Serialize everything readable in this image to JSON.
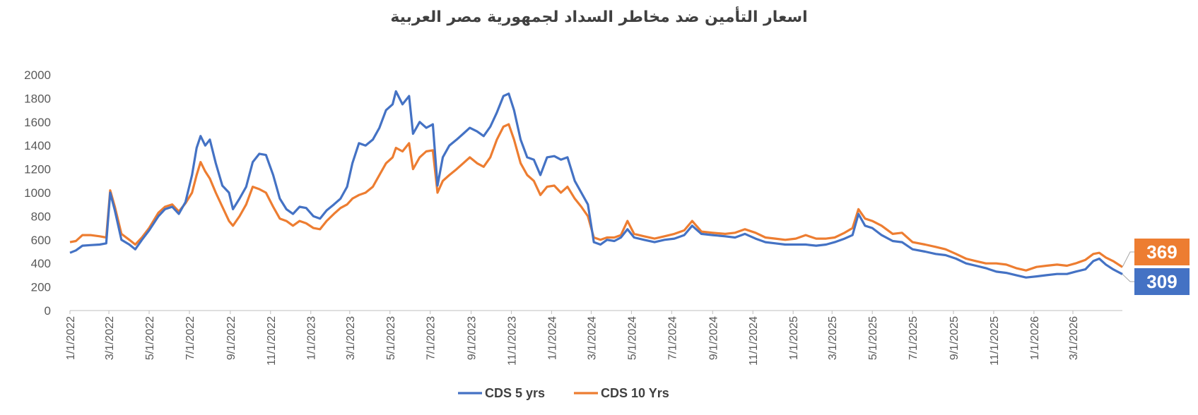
{
  "chart_data": {
    "type": "line",
    "title": "اسعار التأمين ضد مخاطر السداد لجمهورية مصر العربية",
    "xlabel": "",
    "ylabel": "",
    "ylim": [
      0,
      2000
    ],
    "yticks": [
      0,
      200,
      400,
      600,
      800,
      1000,
      1200,
      1400,
      1600,
      1800,
      2000
    ],
    "xrange": [
      "1/1/2022",
      "5/15/2026"
    ],
    "xticks": [
      "1/1/2022",
      "3/1/2022",
      "5/1/2022",
      "7/1/2022",
      "9/1/2022",
      "11/1/2022",
      "1/1/2023",
      "3/1/2023",
      "5/1/2023",
      "7/1/2023",
      "9/1/2023",
      "11/1/2023",
      "1/1/2024",
      "3/1/2024",
      "5/1/2024",
      "7/1/2024",
      "9/1/2024",
      "11/1/2024",
      "1/1/2025",
      "3/1/2025",
      "5/1/2025",
      "7/1/2025",
      "9/1/2025",
      "11/1/2025",
      "1/1/2026",
      "3/1/2026"
    ],
    "grid": false,
    "legend_position": "bottom",
    "series": [
      {
        "name": "CDS 5 yrs",
        "color": "#4472C4",
        "end_label": "309",
        "points": [
          [
            "1/1/2022",
            490
          ],
          [
            "1/10/2022",
            510
          ],
          [
            "1/20/2022",
            550
          ],
          [
            "2/1/2022",
            555
          ],
          [
            "2/15/2022",
            560
          ],
          [
            "2/25/2022",
            570
          ],
          [
            "3/3/2022",
            1000
          ],
          [
            "3/10/2022",
            850
          ],
          [
            "3/20/2022",
            600
          ],
          [
            "4/1/2022",
            560
          ],
          [
            "4/10/2022",
            520
          ],
          [
            "4/20/2022",
            600
          ],
          [
            "5/1/2022",
            680
          ],
          [
            "5/15/2022",
            800
          ],
          [
            "5/25/2022",
            860
          ],
          [
            "6/5/2022",
            880
          ],
          [
            "6/15/2022",
            820
          ],
          [
            "6/25/2022",
            920
          ],
          [
            "7/5/2022",
            1150
          ],
          [
            "7/12/2022",
            1380
          ],
          [
            "7/18/2022",
            1480
          ],
          [
            "7/25/2022",
            1400
          ],
          [
            "8/1/2022",
            1450
          ],
          [
            "8/10/2022",
            1250
          ],
          [
            "8/20/2022",
            1060
          ],
          [
            "8/30/2022",
            1000
          ],
          [
            "9/5/2022",
            860
          ],
          [
            "9/15/2022",
            950
          ],
          [
            "9/25/2022",
            1050
          ],
          [
            "10/5/2022",
            1260
          ],
          [
            "10/15/2022",
            1330
          ],
          [
            "10/25/2022",
            1320
          ],
          [
            "11/5/2022",
            1150
          ],
          [
            "11/15/2022",
            950
          ],
          [
            "11/25/2022",
            860
          ],
          [
            "12/5/2022",
            820
          ],
          [
            "12/15/2022",
            880
          ],
          [
            "12/25/2022",
            870
          ],
          [
            "1/5/2023",
            800
          ],
          [
            "1/15/2023",
            780
          ],
          [
            "1/25/2023",
            850
          ],
          [
            "2/5/2023",
            900
          ],
          [
            "2/15/2023",
            950
          ],
          [
            "2/25/2023",
            1050
          ],
          [
            "3/5/2023",
            1250
          ],
          [
            "3/15/2023",
            1420
          ],
          [
            "3/25/2023",
            1400
          ],
          [
            "4/5/2023",
            1450
          ],
          [
            "4/15/2023",
            1550
          ],
          [
            "4/25/2023",
            1700
          ],
          [
            "5/5/2023",
            1750
          ],
          [
            "5/10/2023",
            1860
          ],
          [
            "5/20/2023",
            1750
          ],
          [
            "5/30/2023",
            1820
          ],
          [
            "6/5/2023",
            1500
          ],
          [
            "6/15/2023",
            1600
          ],
          [
            "6/25/2023",
            1550
          ],
          [
            "7/5/2023",
            1580
          ],
          [
            "7/12/2023",
            1060
          ],
          [
            "7/20/2023",
            1300
          ],
          [
            "7/30/2023",
            1400
          ],
          [
            "8/10/2023",
            1450
          ],
          [
            "8/20/2023",
            1500
          ],
          [
            "8/30/2023",
            1550
          ],
          [
            "9/10/2023",
            1520
          ],
          [
            "9/20/2023",
            1480
          ],
          [
            "9/30/2023",
            1560
          ],
          [
            "10/10/2023",
            1680
          ],
          [
            "10/20/2023",
            1820
          ],
          [
            "10/28/2023",
            1840
          ],
          [
            "11/5/2023",
            1700
          ],
          [
            "11/15/2023",
            1450
          ],
          [
            "11/25/2023",
            1300
          ],
          [
            "12/5/2023",
            1280
          ],
          [
            "12/15/2023",
            1150
          ],
          [
            "12/25/2023",
            1300
          ],
          [
            "1/5/2024",
            1310
          ],
          [
            "1/15/2024",
            1280
          ],
          [
            "1/25/2024",
            1300
          ],
          [
            "2/5/2024",
            1100
          ],
          [
            "2/15/2024",
            1000
          ],
          [
            "2/25/2024",
            900
          ],
          [
            "3/5/2024",
            580
          ],
          [
            "3/15/2024",
            560
          ],
          [
            "3/25/2024",
            600
          ],
          [
            "4/5/2024",
            590
          ],
          [
            "4/15/2024",
            620
          ],
          [
            "4/25/2024",
            690
          ],
          [
            "5/5/2024",
            620
          ],
          [
            "5/20/2024",
            600
          ],
          [
            "6/5/2024",
            580
          ],
          [
            "6/20/2024",
            600
          ],
          [
            "7/5/2024",
            610
          ],
          [
            "7/20/2024",
            640
          ],
          [
            "8/1/2024",
            720
          ],
          [
            "8/15/2024",
            650
          ],
          [
            "9/1/2024",
            640
          ],
          [
            "9/20/2024",
            630
          ],
          [
            "10/5/2024",
            620
          ],
          [
            "10/20/2024",
            650
          ],
          [
            "11/5/2024",
            610
          ],
          [
            "11/20/2024",
            580
          ],
          [
            "12/5/2024",
            570
          ],
          [
            "12/20/2024",
            560
          ],
          [
            "1/5/2025",
            560
          ],
          [
            "1/20/2025",
            560
          ],
          [
            "2/5/2025",
            550
          ],
          [
            "2/20/2025",
            560
          ],
          [
            "3/5/2025",
            580
          ],
          [
            "3/20/2025",
            610
          ],
          [
            "4/1/2025",
            640
          ],
          [
            "4/10/2025",
            820
          ],
          [
            "4/20/2025",
            720
          ],
          [
            "5/1/2025",
            700
          ],
          [
            "5/15/2025",
            640
          ],
          [
            "6/1/2025",
            590
          ],
          [
            "6/15/2025",
            580
          ],
          [
            "7/1/2025",
            520
          ],
          [
            "7/20/2025",
            500
          ],
          [
            "8/5/2025",
            480
          ],
          [
            "8/20/2025",
            470
          ],
          [
            "9/5/2025",
            440
          ],
          [
            "9/20/2025",
            400
          ],
          [
            "10/5/2025",
            380
          ],
          [
            "10/20/2025",
            360
          ],
          [
            "11/5/2025",
            330
          ],
          [
            "11/20/2025",
            320
          ],
          [
            "12/5/2025",
            300
          ],
          [
            "12/20/2025",
            280
          ],
          [
            "1/5/2026",
            290
          ],
          [
            "1/20/2026",
            300
          ],
          [
            "2/5/2026",
            310
          ],
          [
            "2/20/2026",
            310
          ],
          [
            "3/5/2026",
            330
          ],
          [
            "3/20/2026",
            350
          ],
          [
            "4/1/2026",
            420
          ],
          [
            "4/10/2026",
            440
          ],
          [
            "4/20/2026",
            390
          ],
          [
            "5/1/2026",
            350
          ],
          [
            "5/15/2026",
            309
          ]
        ]
      },
      {
        "name": "CDS 10 Yrs",
        "color": "#ED7D31",
        "end_label": "369",
        "points": [
          [
            "1/1/2022",
            580
          ],
          [
            "1/10/2022",
            590
          ],
          [
            "1/20/2022",
            640
          ],
          [
            "2/1/2022",
            640
          ],
          [
            "2/15/2022",
            630
          ],
          [
            "2/25/2022",
            620
          ],
          [
            "3/3/2022",
            1020
          ],
          [
            "3/10/2022",
            880
          ],
          [
            "3/20/2022",
            650
          ],
          [
            "4/1/2022",
            600
          ],
          [
            "4/10/2022",
            560
          ],
          [
            "4/20/2022",
            620
          ],
          [
            "5/1/2022",
            700
          ],
          [
            "5/15/2022",
            830
          ],
          [
            "5/25/2022",
            880
          ],
          [
            "6/5/2022",
            900
          ],
          [
            "6/15/2022",
            840
          ],
          [
            "6/25/2022",
            910
          ],
          [
            "7/5/2022",
            1000
          ],
          [
            "7/12/2022",
            1150
          ],
          [
            "7/18/2022",
            1260
          ],
          [
            "7/25/2022",
            1180
          ],
          [
            "8/1/2022",
            1120
          ],
          [
            "8/10/2022",
            1000
          ],
          [
            "8/20/2022",
            880
          ],
          [
            "8/30/2022",
            760
          ],
          [
            "9/5/2022",
            720
          ],
          [
            "9/15/2022",
            800
          ],
          [
            "9/25/2022",
            900
          ],
          [
            "10/5/2022",
            1050
          ],
          [
            "10/15/2022",
            1030
          ],
          [
            "10/25/2022",
            1000
          ],
          [
            "11/5/2022",
            880
          ],
          [
            "11/15/2022",
            780
          ],
          [
            "11/25/2022",
            760
          ],
          [
            "12/5/2022",
            720
          ],
          [
            "12/15/2022",
            760
          ],
          [
            "12/25/2022",
            740
          ],
          [
            "1/5/2023",
            700
          ],
          [
            "1/15/2023",
            690
          ],
          [
            "1/25/2023",
            760
          ],
          [
            "2/5/2023",
            820
          ],
          [
            "2/15/2023",
            870
          ],
          [
            "2/25/2023",
            900
          ],
          [
            "3/5/2023",
            950
          ],
          [
            "3/15/2023",
            980
          ],
          [
            "3/25/2023",
            1000
          ],
          [
            "4/5/2023",
            1050
          ],
          [
            "4/15/2023",
            1150
          ],
          [
            "4/25/2023",
            1250
          ],
          [
            "5/5/2023",
            1300
          ],
          [
            "5/10/2023",
            1380
          ],
          [
            "5/20/2023",
            1350
          ],
          [
            "5/30/2023",
            1420
          ],
          [
            "6/5/2023",
            1200
          ],
          [
            "6/15/2023",
            1300
          ],
          [
            "6/25/2023",
            1350
          ],
          [
            "7/5/2023",
            1360
          ],
          [
            "7/12/2023",
            1000
          ],
          [
            "7/20/2023",
            1100
          ],
          [
            "7/30/2023",
            1150
          ],
          [
            "8/10/2023",
            1200
          ],
          [
            "8/20/2023",
            1250
          ],
          [
            "8/30/2023",
            1300
          ],
          [
            "9/10/2023",
            1250
          ],
          [
            "9/20/2023",
            1220
          ],
          [
            "9/30/2023",
            1300
          ],
          [
            "10/10/2023",
            1450
          ],
          [
            "10/20/2023",
            1560
          ],
          [
            "10/28/2023",
            1580
          ],
          [
            "11/5/2023",
            1450
          ],
          [
            "11/15/2023",
            1250
          ],
          [
            "11/25/2023",
            1150
          ],
          [
            "12/5/2023",
            1100
          ],
          [
            "12/15/2023",
            980
          ],
          [
            "12/25/2023",
            1050
          ],
          [
            "1/5/2024",
            1060
          ],
          [
            "1/15/2024",
            1000
          ],
          [
            "1/25/2024",
            1050
          ],
          [
            "2/5/2024",
            950
          ],
          [
            "2/15/2024",
            880
          ],
          [
            "2/25/2024",
            800
          ],
          [
            "3/5/2024",
            620
          ],
          [
            "3/15/2024",
            600
          ],
          [
            "3/25/2024",
            620
          ],
          [
            "4/5/2024",
            620
          ],
          [
            "4/15/2024",
            640
          ],
          [
            "4/25/2024",
            760
          ],
          [
            "5/5/2024",
            650
          ],
          [
            "5/20/2024",
            630
          ],
          [
            "6/5/2024",
            610
          ],
          [
            "6/20/2024",
            630
          ],
          [
            "7/5/2024",
            650
          ],
          [
            "7/20/2024",
            680
          ],
          [
            "8/1/2024",
            760
          ],
          [
            "8/15/2024",
            670
          ],
          [
            "9/1/2024",
            660
          ],
          [
            "9/20/2024",
            650
          ],
          [
            "10/5/2024",
            660
          ],
          [
            "10/20/2024",
            690
          ],
          [
            "11/5/2024",
            660
          ],
          [
            "11/20/2024",
            620
          ],
          [
            "12/5/2024",
            610
          ],
          [
            "12/20/2024",
            600
          ],
          [
            "1/5/2025",
            610
          ],
          [
            "1/20/2025",
            640
          ],
          [
            "2/5/2025",
            610
          ],
          [
            "2/20/2025",
            610
          ],
          [
            "3/5/2025",
            620
          ],
          [
            "3/20/2025",
            660
          ],
          [
            "4/1/2025",
            700
          ],
          [
            "4/10/2025",
            860
          ],
          [
            "4/20/2025",
            780
          ],
          [
            "5/1/2025",
            760
          ],
          [
            "5/15/2025",
            720
          ],
          [
            "6/1/2025",
            650
          ],
          [
            "6/15/2025",
            660
          ],
          [
            "7/1/2025",
            580
          ],
          [
            "7/20/2025",
            560
          ],
          [
            "8/5/2025",
            540
          ],
          [
            "8/20/2025",
            520
          ],
          [
            "9/5/2025",
            480
          ],
          [
            "9/20/2025",
            440
          ],
          [
            "10/5/2025",
            420
          ],
          [
            "10/20/2025",
            400
          ],
          [
            "11/5/2025",
            400
          ],
          [
            "11/20/2025",
            390
          ],
          [
            "12/5/2025",
            360
          ],
          [
            "12/20/2025",
            340
          ],
          [
            "1/5/2026",
            370
          ],
          [
            "1/20/2026",
            380
          ],
          [
            "2/5/2026",
            390
          ],
          [
            "2/20/2026",
            380
          ],
          [
            "3/5/2026",
            400
          ],
          [
            "3/20/2026",
            430
          ],
          [
            "4/1/2026",
            480
          ],
          [
            "4/10/2026",
            490
          ],
          [
            "4/20/2026",
            450
          ],
          [
            "5/1/2026",
            420
          ],
          [
            "5/15/2026",
            369
          ]
        ]
      }
    ]
  }
}
